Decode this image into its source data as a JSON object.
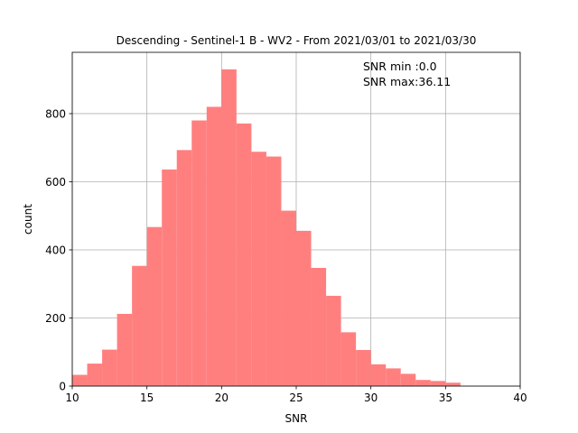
{
  "chart_data": {
    "type": "bar",
    "title": "Descending - Sentinel-1 B - WV2 - From 2021/03/01 to 2021/03/30",
    "xlabel": "SNR",
    "ylabel": "count",
    "xlim": [
      10,
      40
    ],
    "ylim": [
      0,
      980
    ],
    "xticks": [
      10,
      15,
      20,
      25,
      30,
      35,
      40
    ],
    "yticks": [
      0,
      200,
      400,
      600,
      800
    ],
    "grid": true,
    "bar_color": "#ff7f7f",
    "bin_width": 1,
    "bins": [
      {
        "x0": 10,
        "count": 33
      },
      {
        "x0": 11,
        "count": 66
      },
      {
        "x0": 12,
        "count": 107
      },
      {
        "x0": 13,
        "count": 212
      },
      {
        "x0": 14,
        "count": 353
      },
      {
        "x0": 15,
        "count": 467
      },
      {
        "x0": 16,
        "count": 636
      },
      {
        "x0": 17,
        "count": 693
      },
      {
        "x0": 18,
        "count": 780
      },
      {
        "x0": 19,
        "count": 820
      },
      {
        "x0": 20,
        "count": 930
      },
      {
        "x0": 21,
        "count": 771
      },
      {
        "x0": 22,
        "count": 688
      },
      {
        "x0": 23,
        "count": 674
      },
      {
        "x0": 24,
        "count": 515
      },
      {
        "x0": 25,
        "count": 456
      },
      {
        "x0": 26,
        "count": 347
      },
      {
        "x0": 27,
        "count": 265
      },
      {
        "x0": 28,
        "count": 158
      },
      {
        "x0": 29,
        "count": 106
      },
      {
        "x0": 30,
        "count": 64
      },
      {
        "x0": 31,
        "count": 52
      },
      {
        "x0": 32,
        "count": 36
      },
      {
        "x0": 33,
        "count": 18
      },
      {
        "x0": 34,
        "count": 15
      },
      {
        "x0": 35,
        "count": 10
      }
    ],
    "annotations": [
      "SNR min :0.0",
      "SNR max:36.11"
    ]
  }
}
